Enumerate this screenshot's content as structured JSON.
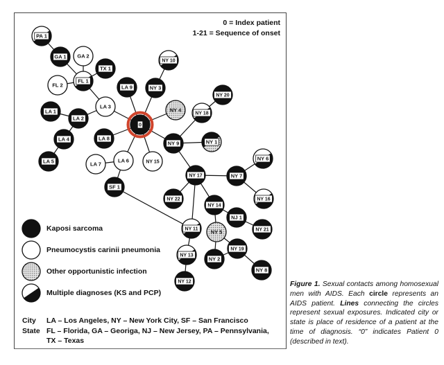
{
  "header": {
    "index_note": "0 = Index patient",
    "sequence_note": "1-21 = Sequence of onset"
  },
  "colors": {
    "index_ring": "#d0442c",
    "kaposi": "#111111",
    "pcp": "#ffffff",
    "other": "#c8c8c8",
    "line": "#111111"
  },
  "legend": [
    {
      "type": "K",
      "label": "Kaposi sarcoma"
    },
    {
      "type": "P",
      "label": "Pneumocystis carinii pneumonia"
    },
    {
      "type": "O",
      "label": "Other opportunistic infection"
    },
    {
      "type": "M",
      "label": "Multiple diagnoses (KS and PCP)"
    }
  ],
  "abbreviations": {
    "city_heading": "City",
    "city_text": "LA – Los Angeles, NY – New York City, SF – San Francisco",
    "state_heading": "State",
    "state_text": "FL – Florida, GA – Georiga, NJ – New Jersey, PA – Pennsylvania,",
    "state_text_2": "TX – Texas"
  },
  "nodes": [
    {
      "id": "PA1",
      "label": "PA 1",
      "type": "M"
    },
    {
      "id": "GA1",
      "label": "GA 1",
      "type": "K"
    },
    {
      "id": "GA2",
      "label": "GA 2",
      "type": "P"
    },
    {
      "id": "TX1",
      "label": "TX 1",
      "type": "K"
    },
    {
      "id": "FL1",
      "label": "FL 1",
      "type": "M"
    },
    {
      "id": "FL2",
      "label": "FL 2",
      "type": "P"
    },
    {
      "id": "LA9",
      "label": "LA 9",
      "type": "K"
    },
    {
      "id": "NY3",
      "label": "NY 3",
      "type": "K"
    },
    {
      "id": "NY10",
      "label": "NY 10",
      "type": "M"
    },
    {
      "id": "LA3",
      "label": "LA 3",
      "type": "P"
    },
    {
      "id": "NY4",
      "label": "NY 4",
      "type": "O"
    },
    {
      "id": "NY18",
      "label": "NY 18",
      "type": "M"
    },
    {
      "id": "NY20",
      "label": "NY 20",
      "type": "K"
    },
    {
      "id": "LA1",
      "label": "LA 1",
      "type": "K"
    },
    {
      "id": "LA2",
      "label": "LA 2",
      "type": "K"
    },
    {
      "id": "P0",
      "label": "0",
      "type": "K",
      "index": true
    },
    {
      "id": "LA8",
      "label": "LA 8",
      "type": "K"
    },
    {
      "id": "NY9",
      "label": "NY 9",
      "type": "K"
    },
    {
      "id": "NY1",
      "label": "NY 1",
      "type": "KO"
    },
    {
      "id": "LA4",
      "label": "LA 4",
      "type": "K"
    },
    {
      "id": "LA5",
      "label": "LA 5",
      "type": "K"
    },
    {
      "id": "LA7",
      "label": "LA 7",
      "type": "P"
    },
    {
      "id": "LA6",
      "label": "LA 6",
      "type": "P"
    },
    {
      "id": "NY15",
      "label": "NY 15",
      "type": "P"
    },
    {
      "id": "NY17",
      "label": "NY 17",
      "type": "K"
    },
    {
      "id": "NY6",
      "label": "NY 6",
      "type": "M"
    },
    {
      "id": "NY7",
      "label": "NY 7",
      "type": "K"
    },
    {
      "id": "NY16",
      "label": "NY 16",
      "type": "M"
    },
    {
      "id": "SF1",
      "label": "SF 1",
      "type": "K"
    },
    {
      "id": "NY22",
      "label": "NY 22",
      "type": "K"
    },
    {
      "id": "NY14",
      "label": "NY 14",
      "type": "K"
    },
    {
      "id": "NJ1",
      "label": "NJ 1",
      "type": "K"
    },
    {
      "id": "NY21",
      "label": "NY 21",
      "type": "K"
    },
    {
      "id": "NY11",
      "label": "NY 11",
      "type": "M"
    },
    {
      "id": "NY5",
      "label": "NY 5",
      "type": "O"
    },
    {
      "id": "NY19",
      "label": "NY 19",
      "type": "K"
    },
    {
      "id": "NY13",
      "label": "NY 13",
      "type": "M"
    },
    {
      "id": "NY2",
      "label": "NY 2",
      "type": "K"
    },
    {
      "id": "NY8",
      "label": "NY 8",
      "type": "K"
    },
    {
      "id": "NY12",
      "label": "NY 12",
      "type": "K"
    }
  ],
  "edges": [
    [
      "PA1",
      "GA1"
    ],
    [
      "GA1",
      "FL1"
    ],
    [
      "GA2",
      "FL1"
    ],
    [
      "TX1",
      "FL1"
    ],
    [
      "FL2",
      "FL1"
    ],
    [
      "FL1",
      "LA3"
    ],
    [
      "LA3",
      "P0"
    ],
    [
      "LA3",
      "LA2"
    ],
    [
      "LA1",
      "LA2"
    ],
    [
      "LA2",
      "LA4"
    ],
    [
      "LA4",
      "LA5"
    ],
    [
      "LA9",
      "P0"
    ],
    [
      "NY3",
      "P0"
    ],
    [
      "NY3",
      "NY10"
    ],
    [
      "NY4",
      "P0"
    ],
    [
      "LA8",
      "P0"
    ],
    [
      "LA6",
      "P0"
    ],
    [
      "NY15",
      "P0"
    ],
    [
      "NY9",
      "P0"
    ],
    [
      "LA7",
      "LA6"
    ],
    [
      "LA6",
      "SF1"
    ],
    [
      "SF1",
      "NY11"
    ],
    [
      "NY9",
      "NY18"
    ],
    [
      "NY18",
      "NY20"
    ],
    [
      "NY9",
      "NY1"
    ],
    [
      "NY9",
      "NY17"
    ],
    [
      "NY17",
      "NY7"
    ],
    [
      "NY7",
      "NY6"
    ],
    [
      "NY7",
      "NY16"
    ],
    [
      "NY17",
      "NY22"
    ],
    [
      "NY17",
      "NY14"
    ],
    [
      "NY17",
      "NY11"
    ],
    [
      "NY14",
      "NJ1"
    ],
    [
      "NJ1",
      "NY21"
    ],
    [
      "NY14",
      "NY5"
    ],
    [
      "NY5",
      "NY19"
    ],
    [
      "NY5",
      "NY2"
    ],
    [
      "NY19",
      "NY2"
    ],
    [
      "NY19",
      "NY8"
    ],
    [
      "NY11",
      "NY13"
    ],
    [
      "NY13",
      "NY12"
    ]
  ],
  "caption": {
    "figure_label": "Figure 1.",
    "part1": " Sexual contacts among homosexual men with AIDS. Each ",
    "circle_word": "circle",
    "part2": " represents an AIDS patient. ",
    "lines_word": "Lines",
    "part3": " connecting the circles represent sexual exposures. Indicated city or state is place of residence of a patient at the time of diagnosis. “0” indicates Patient 0 (described in text)."
  }
}
